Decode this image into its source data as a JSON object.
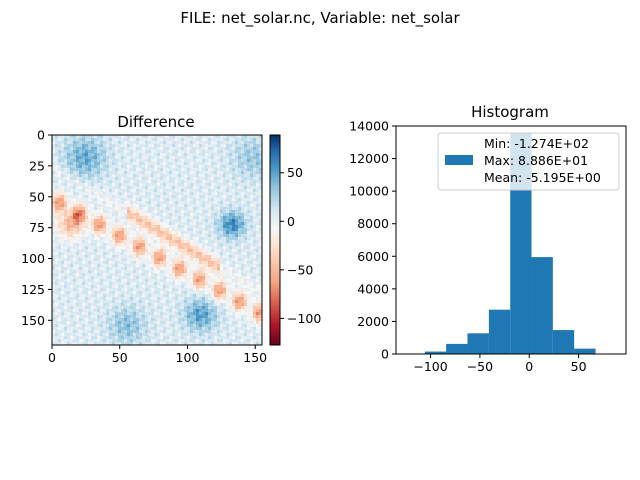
{
  "figure": {
    "suptitle": "FILE: net_solar.nc, Variable: net_solar"
  },
  "chart_data": [
    {
      "type": "heatmap",
      "title": "Difference",
      "colormap": "RdBu",
      "xlim": [
        0,
        155
      ],
      "ylim": [
        170,
        0
      ],
      "x_ticks": [
        0,
        50,
        100,
        150
      ],
      "y_ticks": [
        0,
        25,
        50,
        75,
        100,
        125,
        150
      ],
      "colorbar": {
        "range": [
          -127.4,
          88.86
        ],
        "ticks": [
          50,
          0,
          -50,
          -100
        ],
        "tick_labels": [
          "50",
          "0",
          "−50",
          "−100"
        ]
      }
    },
    {
      "type": "bar",
      "title": "Histogram",
      "bar_color": "#1f77b4",
      "xlim": [
        -135,
        98
      ],
      "ylim": [
        0,
        14000
      ],
      "x_ticks": [
        -100,
        -50,
        0,
        50
      ],
      "x_tick_labels": [
        "−100",
        "−50",
        "0",
        "50"
      ],
      "y_ticks": [
        0,
        2000,
        4000,
        6000,
        8000,
        10000,
        12000,
        14000
      ],
      "bins": [
        {
          "x0": -127.4,
          "x1": -105.8,
          "count": 20
        },
        {
          "x0": -105.8,
          "x1": -84.2,
          "count": 150
        },
        {
          "x0": -84.2,
          "x1": -62.6,
          "count": 620
        },
        {
          "x0": -62.6,
          "x1": -40.9,
          "count": 1270
        },
        {
          "x0": -40.9,
          "x1": -19.3,
          "count": 2720
        },
        {
          "x0": -19.3,
          "x1": 2.3,
          "count": 13600
        },
        {
          "x0": 2.3,
          "x1": 23.9,
          "count": 5950
        },
        {
          "x0": 23.9,
          "x1": 45.5,
          "count": 1470
        },
        {
          "x0": 45.5,
          "x1": 67.2,
          "count": 330
        },
        {
          "x0": 67.2,
          "x1": 88.86,
          "count": 30
        }
      ],
      "legend": {
        "placement": "top-right",
        "lines": [
          "Min: -1.274E+02",
          "Max: 8.886E+01",
          "Mean: -5.195E+00"
        ]
      }
    }
  ]
}
